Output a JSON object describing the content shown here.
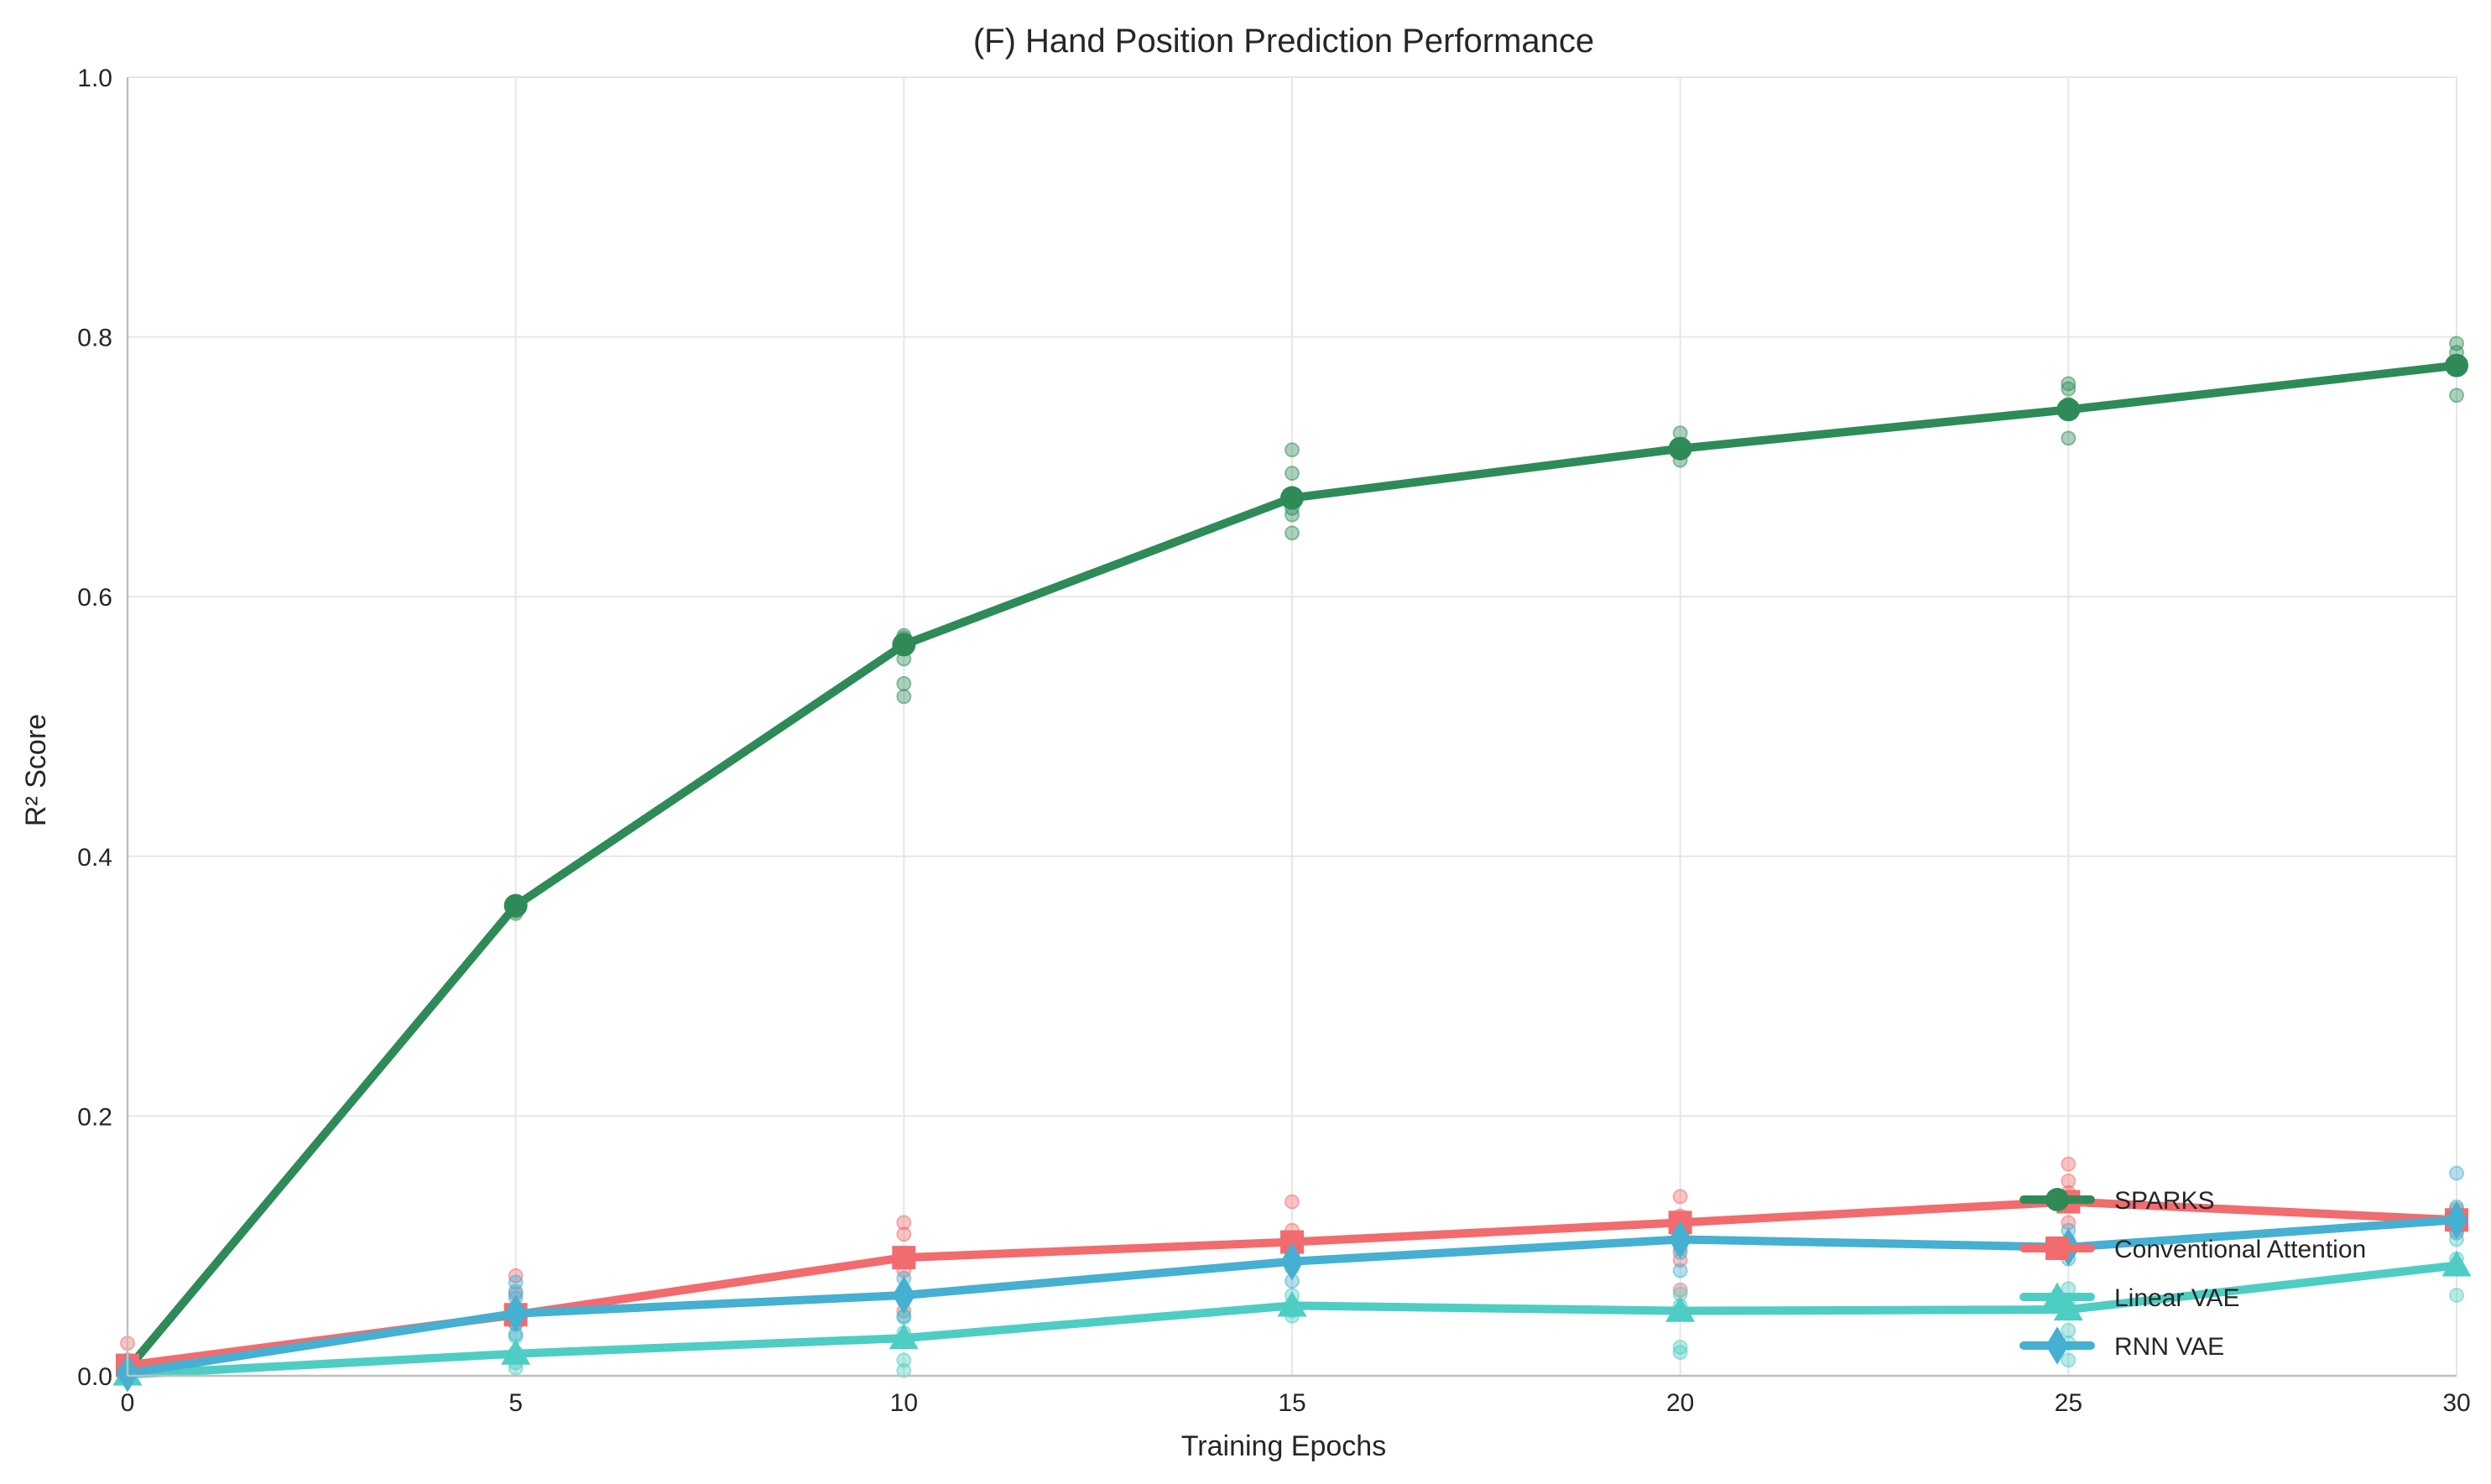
{
  "chart_data": {
    "type": "line",
    "title": "(F) Hand Position Prediction Performance",
    "xlabel": "Training Epochs",
    "ylabel": "R² Score",
    "xlim": [
      0,
      30
    ],
    "ylim": [
      0,
      1.0
    ],
    "x_ticks": [
      "0",
      "5",
      "10",
      "15",
      "20",
      "25",
      "30"
    ],
    "y_ticks": [
      "0.0",
      "0.2",
      "0.4",
      "0.6",
      "0.8",
      "1.0"
    ],
    "grid": true,
    "legend_position": "bottom-right",
    "x": [
      0,
      5,
      10,
      15,
      20,
      25,
      30
    ],
    "series": [
      {
        "name": "SPARKS",
        "color": "#2e8b57",
        "marker": "circle",
        "values": [
          0.005,
          0.362,
          0.563,
          0.676,
          0.714,
          0.744,
          0.778
        ],
        "scatter": [
          [
            0.0,
            0.008
          ],
          [
            5,
            0.358,
            0.365,
            0.356
          ],
          [
            10,
            0.57,
            0.552,
            0.533,
            0.523,
            0.568
          ],
          [
            15,
            0.713,
            0.695,
            0.663,
            0.649,
            0.668
          ],
          [
            20,
            0.726,
            0.714,
            0.705,
            0.716
          ],
          [
            25,
            0.764,
            0.76,
            0.748,
            0.722
          ],
          [
            30,
            0.795,
            0.788,
            0.755,
            0.78
          ]
        ]
      },
      {
        "name": "Conventional Attention",
        "color": "#f26b6e",
        "marker": "square",
        "values": [
          0.008,
          0.047,
          0.091,
          0.103,
          0.118,
          0.134,
          0.12
        ],
        "scatter": [
          [
            0.0,
            0.025,
            0.012
          ],
          [
            5,
            0.077,
            0.063,
            0.04,
            0.052
          ],
          [
            10,
            0.118,
            0.109,
            0.081,
            0.063,
            0.05
          ],
          [
            15,
            0.134,
            0.112,
            0.095,
            0.1
          ],
          [
            20,
            0.138,
            0.123,
            0.098,
            0.089,
            0.066
          ],
          [
            25,
            0.163,
            0.15,
            0.141,
            0.138,
            0.118
          ],
          [
            30,
            0.128,
            0.121,
            0.112
          ]
        ]
      },
      {
        "name": "Linear VAE",
        "color": "#4ecdc4",
        "marker": "triangle",
        "values": [
          0.001,
          0.017,
          0.029,
          0.054,
          0.05,
          0.051,
          0.085
        ],
        "scatter": [
          [
            0.0,
            0.003
          ],
          [
            5,
            0.03,
            0.018,
            0.01,
            0.006
          ],
          [
            10,
            0.045,
            0.033,
            0.027,
            0.012,
            0.004
          ],
          [
            15,
            0.062,
            0.055,
            0.05,
            0.046
          ],
          [
            20,
            0.063,
            0.054,
            0.022,
            0.018
          ],
          [
            25,
            0.067,
            0.058,
            0.035,
            0.025,
            0.012
          ],
          [
            30,
            0.105,
            0.09,
            0.082,
            0.062
          ]
        ]
      },
      {
        "name": "RNN VAE",
        "color": "#45b0d1",
        "marker": "diamond",
        "values": [
          0.002,
          0.048,
          0.062,
          0.088,
          0.105,
          0.099,
          0.12
        ],
        "scatter": [
          [
            0.0,
            0.012,
            0.006
          ],
          [
            5,
            0.072,
            0.065,
            0.06,
            0.04,
            0.032
          ],
          [
            10,
            0.075,
            0.066,
            0.058,
            0.046
          ],
          [
            15,
            0.1,
            0.091,
            0.083,
            0.073
          ],
          [
            20,
            0.118,
            0.11,
            0.104,
            0.095,
            0.081
          ],
          [
            25,
            0.112,
            0.104,
            0.095,
            0.09
          ],
          [
            30,
            0.156,
            0.13,
            0.124,
            0.118,
            0.11
          ]
        ]
      }
    ]
  }
}
